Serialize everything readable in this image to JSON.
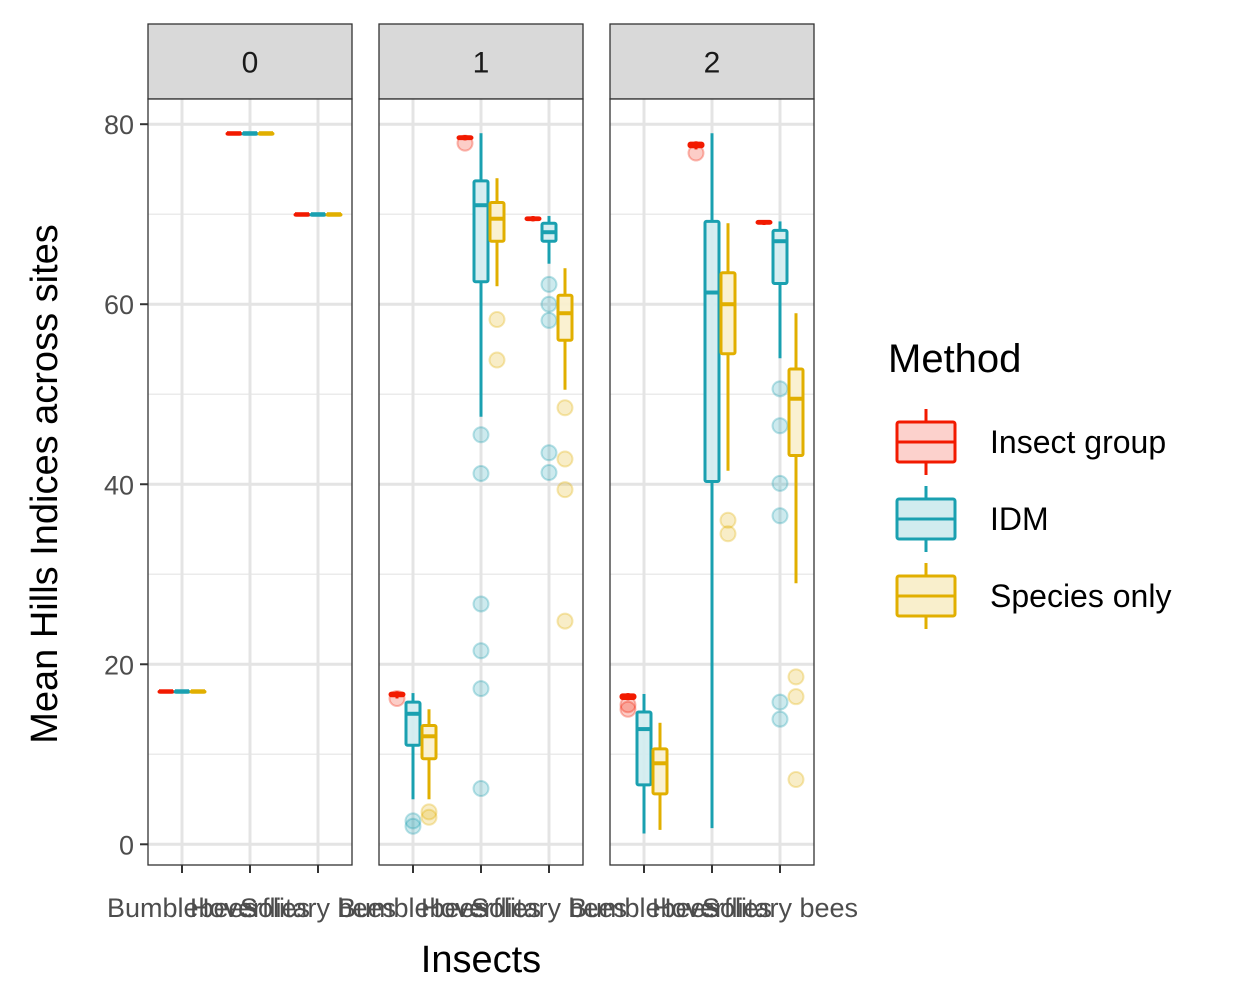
{
  "chart_data": {
    "type": "boxplot",
    "xlabel": "Insects",
    "ylabel": "Mean Hills Indices across sites",
    "ylim": [
      -2.3,
      82.8
    ],
    "yticks": [
      0,
      20,
      40,
      60,
      80
    ],
    "categories": [
      "Bumblebees",
      "Hoverflies",
      "Solitary bees"
    ],
    "legend": {
      "title": "Method",
      "position": "right",
      "entries": [
        {
          "name": "Insect group",
          "color": "#F21A00",
          "fill": "#FCD1CC"
        },
        {
          "name": "IDM",
          "color": "#1AA0B0",
          "fill": "#D1ECEF"
        },
        {
          "name": "Species only",
          "color": "#E1AF00",
          "fill": "#F9EFCC"
        }
      ]
    },
    "panels": [
      {
        "strip": "0",
        "groups": [
          {
            "insect": "Bumblebees",
            "method": "Insect group",
            "min": 17,
            "q1": 17,
            "median": 17,
            "q3": 17,
            "max": 17,
            "outliers": []
          },
          {
            "insect": "Bumblebees",
            "method": "IDM",
            "min": 17,
            "q1": 17,
            "median": 17,
            "q3": 17,
            "max": 17,
            "outliers": []
          },
          {
            "insect": "Bumblebees",
            "method": "Species only",
            "min": 17,
            "q1": 17,
            "median": 17,
            "q3": 17,
            "max": 17,
            "outliers": []
          },
          {
            "insect": "Hoverflies",
            "method": "Insect group",
            "min": 79,
            "q1": 79,
            "median": 79,
            "q3": 79,
            "max": 79,
            "outliers": []
          },
          {
            "insect": "Hoverflies",
            "method": "IDM",
            "min": 79,
            "q1": 79,
            "median": 79,
            "q3": 79,
            "max": 79,
            "outliers": []
          },
          {
            "insect": "Hoverflies",
            "method": "Species only",
            "min": 79,
            "q1": 79,
            "median": 79,
            "q3": 79,
            "max": 79,
            "outliers": []
          },
          {
            "insect": "Solitary bees",
            "method": "Insect group",
            "min": 70,
            "q1": 70,
            "median": 70,
            "q3": 70,
            "max": 70,
            "outliers": []
          },
          {
            "insect": "Solitary bees",
            "method": "IDM",
            "min": 70,
            "q1": 70,
            "median": 70,
            "q3": 70,
            "max": 70,
            "outliers": []
          },
          {
            "insect": "Solitary bees",
            "method": "Species only",
            "min": 70,
            "q1": 70,
            "median": 70,
            "q3": 70,
            "max": 70,
            "outliers": []
          }
        ]
      },
      {
        "strip": "1",
        "groups": [
          {
            "insect": "Bumblebees",
            "method": "Insect group",
            "min": 16.2,
            "q1": 16.5,
            "median": 16.6,
            "q3": 16.8,
            "max": 17,
            "outliers": [
              16.2
            ]
          },
          {
            "insect": "Bumblebees",
            "method": "IDM",
            "min": 5,
            "q1": 11,
            "median": 14.5,
            "q3": 15.8,
            "max": 16.8,
            "outliers": [
              2.6,
              2
            ]
          },
          {
            "insect": "Bumblebees",
            "method": "Species only",
            "min": 5,
            "q1": 9.5,
            "median": 12,
            "q3": 13.2,
            "max": 15,
            "outliers": [
              3.6,
              3
            ]
          },
          {
            "insect": "Hoverflies",
            "method": "Insect group",
            "min": 78.2,
            "q1": 78.4,
            "median": 78.5,
            "q3": 78.6,
            "max": 78.8,
            "outliers": [
              77.9
            ]
          },
          {
            "insect": "Hoverflies",
            "method": "IDM",
            "min": 47.5,
            "q1": 62.5,
            "median": 71,
            "q3": 73.7,
            "max": 79,
            "outliers": [
              45.5,
              41.2,
              26.7,
              21.5,
              17.3,
              6.2
            ]
          },
          {
            "insect": "Hoverflies",
            "method": "Species only",
            "min": 62,
            "q1": 67,
            "median": 69.5,
            "q3": 71.3,
            "max": 74,
            "outliers": [
              58.3,
              53.8
            ]
          },
          {
            "insect": "Solitary bees",
            "method": "Insect group",
            "min": 69.2,
            "q1": 69.4,
            "median": 69.5,
            "q3": 69.6,
            "max": 69.8,
            "outliers": []
          },
          {
            "insect": "Solitary bees",
            "method": "IDM",
            "min": 64.5,
            "q1": 67,
            "median": 68,
            "q3": 69,
            "max": 69.8,
            "outliers": [
              62.2,
              60,
              58.2,
              43.5,
              41.3
            ]
          },
          {
            "insect": "Solitary bees",
            "method": "Species only",
            "min": 50.5,
            "q1": 56,
            "median": 59,
            "q3": 61,
            "max": 64,
            "outliers": [
              48.5,
              42.8,
              39.4,
              24.8
            ]
          }
        ]
      },
      {
        "strip": "2",
        "groups": [
          {
            "insect": "Bumblebees",
            "method": "Insect group",
            "min": 16,
            "q1": 16.2,
            "median": 16.4,
            "q3": 16.6,
            "max": 16.8,
            "outliers": [
              15.5,
              15
            ]
          },
          {
            "insect": "Bumblebees",
            "method": "IDM",
            "min": 1.2,
            "q1": 6.6,
            "median": 12.8,
            "q3": 14.7,
            "max": 16.7,
            "outliers": []
          },
          {
            "insect": "Bumblebees",
            "method": "Species only",
            "min": 1.6,
            "q1": 5.6,
            "median": 9,
            "q3": 10.6,
            "max": 13.5,
            "outliers": []
          },
          {
            "insect": "Hoverflies",
            "method": "Insect group",
            "min": 77.2,
            "q1": 77.5,
            "median": 77.7,
            "q3": 77.9,
            "max": 78.1,
            "outliers": [
              76.8
            ]
          },
          {
            "insect": "Hoverflies",
            "method": "IDM",
            "min": 1.8,
            "q1": 40.3,
            "median": 61.3,
            "q3": 69.2,
            "max": 79,
            "outliers": []
          },
          {
            "insect": "Hoverflies",
            "method": "Species only",
            "min": 41.5,
            "q1": 54.5,
            "median": 60,
            "q3": 63.5,
            "max": 69,
            "outliers": [
              36,
              34.5
            ]
          },
          {
            "insect": "Solitary bees",
            "method": "Insect group",
            "min": 68.8,
            "q1": 69,
            "median": 69.1,
            "q3": 69.2,
            "max": 69.3,
            "outliers": []
          },
          {
            "insect": "Solitary bees",
            "method": "IDM",
            "min": 54,
            "q1": 62.3,
            "median": 67,
            "q3": 68.2,
            "max": 69.2,
            "outliers": [
              50.6,
              46.5,
              40.1,
              36.5,
              15.8,
              13.9
            ]
          },
          {
            "insect": "Solitary bees",
            "method": "Species only",
            "min": 29,
            "q1": 43.2,
            "median": 49.5,
            "q3": 52.8,
            "max": 59,
            "outliers": [
              18.6,
              16.4,
              7.2
            ]
          }
        ]
      }
    ]
  }
}
